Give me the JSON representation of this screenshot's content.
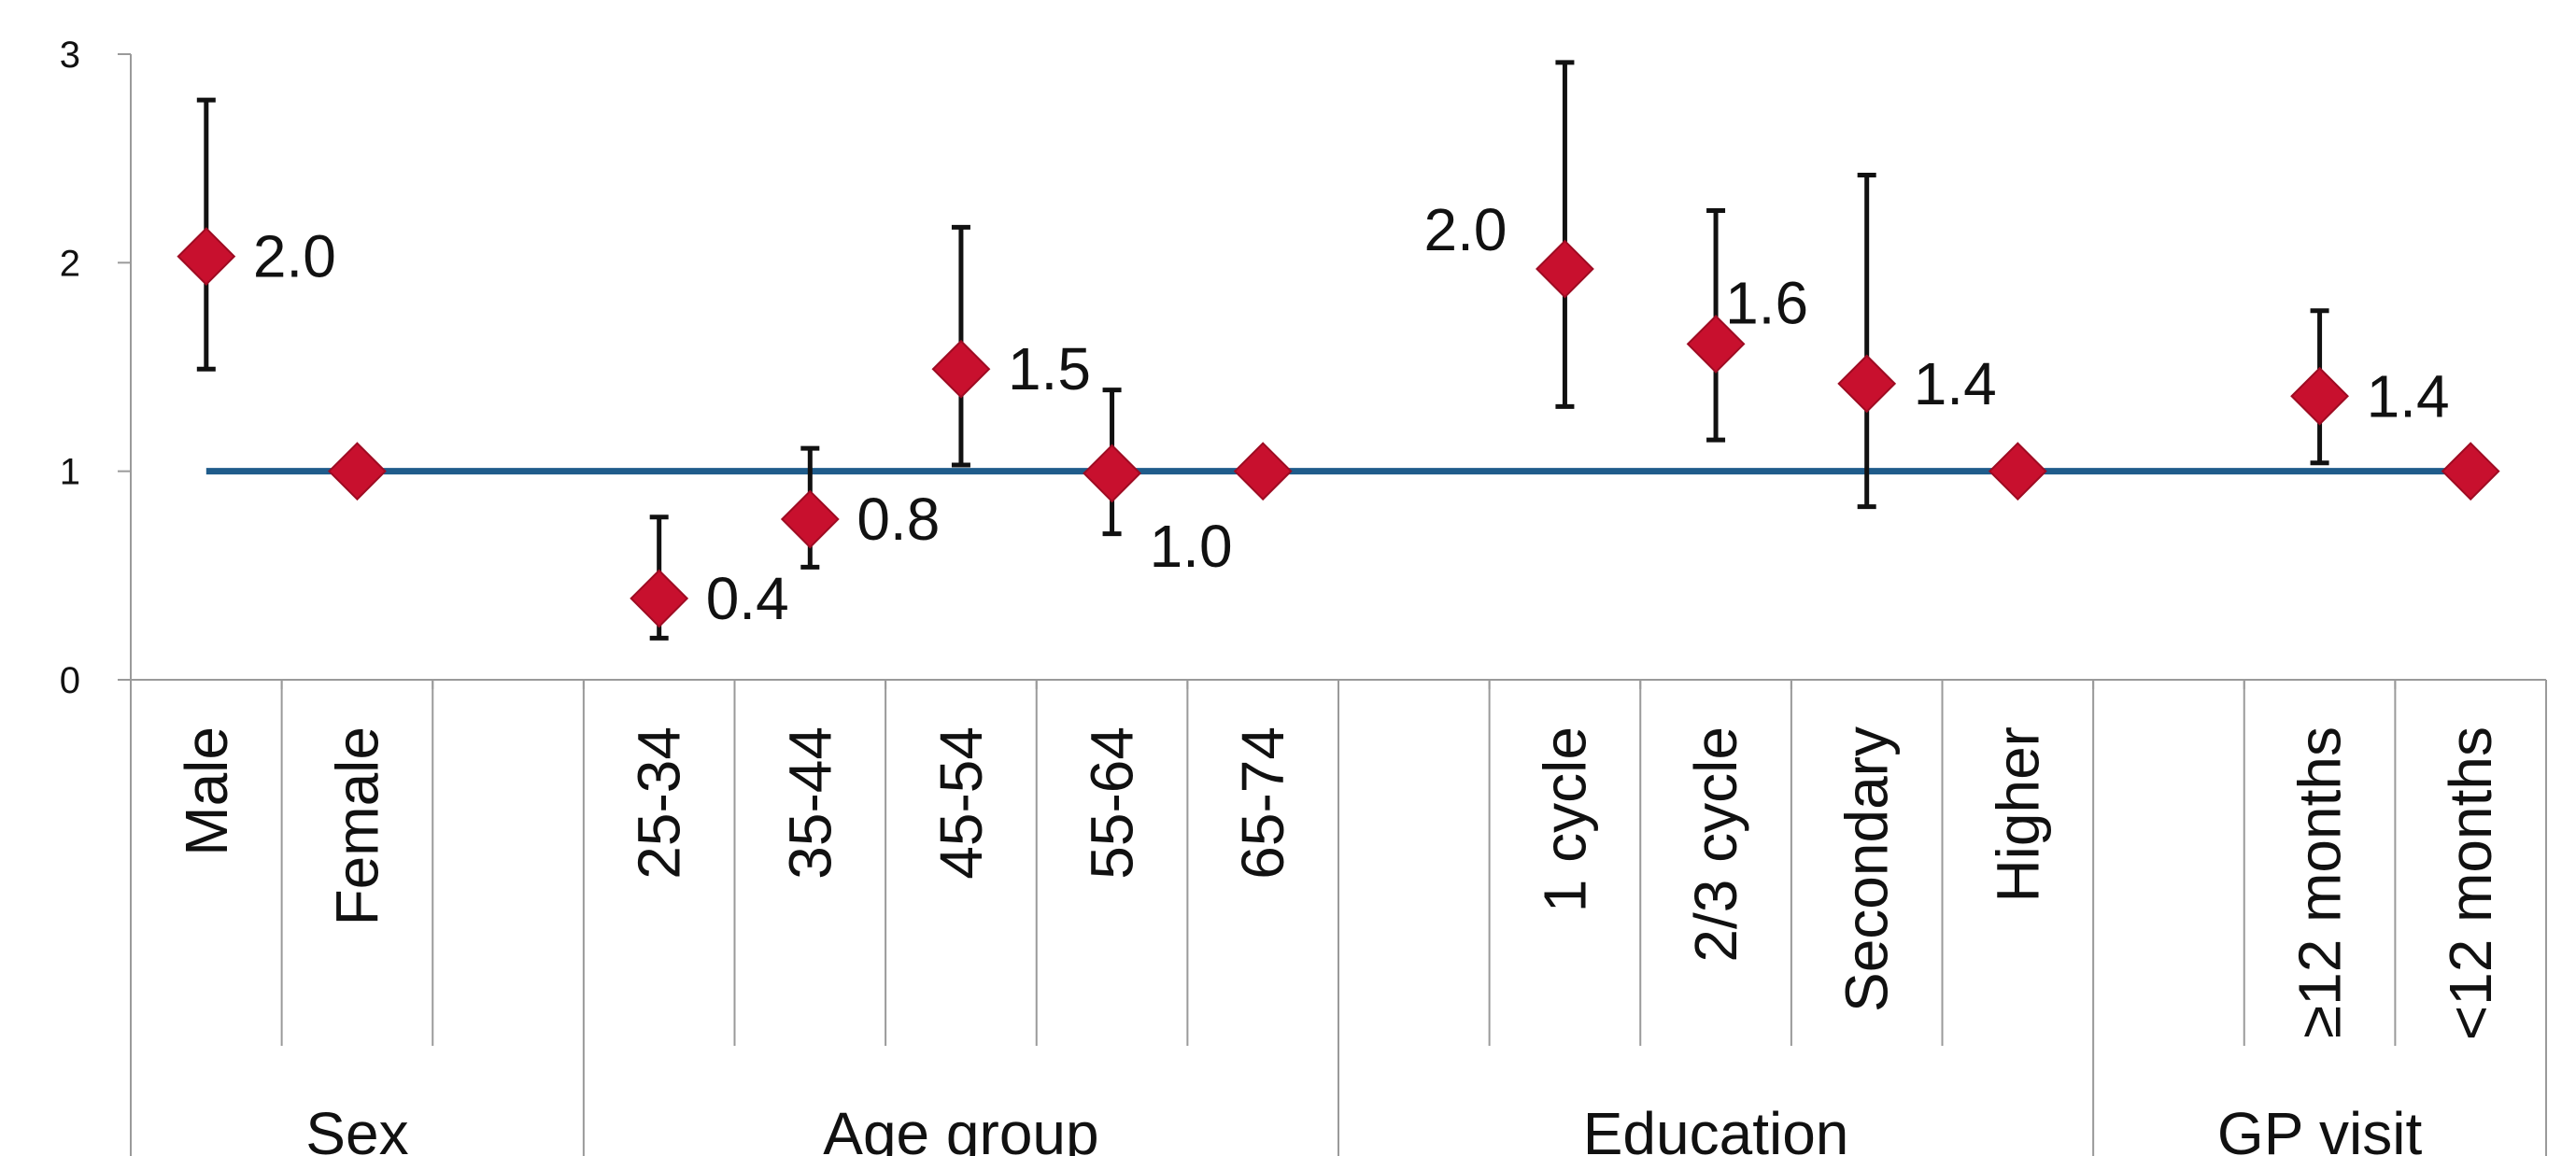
{
  "chart_data": {
    "type": "scatter",
    "title": "",
    "xlabel": "",
    "ylabel": "",
    "ylim": [
      0,
      3
    ],
    "yticks": [
      "0",
      "1",
      "2",
      "3"
    ],
    "grid": false,
    "reference_line": {
      "y": 1,
      "color": "#1f5c8b"
    },
    "marker_color": "#c8102e",
    "slots": [
      {
        "label": "Male",
        "group": "Sex"
      },
      {
        "label": "Female",
        "group": "Sex"
      },
      {
        "label": "",
        "group": "Sex"
      },
      {
        "label": "25-34",
        "group": "Age group"
      },
      {
        "label": "35-44",
        "group": "Age group"
      },
      {
        "label": "45-54",
        "group": "Age group"
      },
      {
        "label": "55-64",
        "group": "Age group"
      },
      {
        "label": "65-74",
        "group": "Age group"
      },
      {
        "label": "",
        "group": "Education"
      },
      {
        "label": "1 cycle",
        "group": "Education"
      },
      {
        "label": "2/3 cycle",
        "group": "Education"
      },
      {
        "label": "Secondary",
        "group": "Education"
      },
      {
        "label": "Higher",
        "group": "Education"
      },
      {
        "label": "",
        "group": "GP visit"
      },
      {
        "label": "≥12 months",
        "group": "GP visit"
      },
      {
        "label": "<12 months",
        "group": "GP visit"
      }
    ],
    "groups": [
      "Sex",
      "Age group",
      "Education",
      "GP visit"
    ],
    "points": [
      {
        "slot": 0,
        "value": 2.03,
        "low": 1.49,
        "high": 2.78,
        "label": "2.0",
        "label_side": "right"
      },
      {
        "slot": 1,
        "value": 1.0,
        "label": ""
      },
      {
        "slot": 3,
        "value": 0.39,
        "low": 0.2,
        "high": 0.78,
        "label": "0.4",
        "label_side": "right"
      },
      {
        "slot": 4,
        "value": 0.77,
        "low": 0.54,
        "high": 1.11,
        "label": "0.8",
        "label_side": "right"
      },
      {
        "slot": 5,
        "value": 1.49,
        "low": 1.03,
        "high": 2.17,
        "label": "1.5",
        "label_side": "right"
      },
      {
        "slot": 6,
        "value": 0.99,
        "low": 0.7,
        "high": 1.39,
        "label": "1.0",
        "label_side": "right-below"
      },
      {
        "slot": 7,
        "value": 1.0,
        "label": ""
      },
      {
        "slot": 9,
        "value": 1.97,
        "low": 1.31,
        "high": 2.96,
        "label": "2.0",
        "label_side": "left-above"
      },
      {
        "slot": 10,
        "value": 1.61,
        "low": 1.15,
        "high": 2.25,
        "label": "1.6",
        "label_side": "right-above"
      },
      {
        "slot": 11,
        "value": 1.42,
        "low": 0.83,
        "high": 2.42,
        "label": "1.4",
        "label_side": "right"
      },
      {
        "slot": 12,
        "value": 1.0,
        "label": ""
      },
      {
        "slot": 14,
        "value": 1.36,
        "low": 1.04,
        "high": 1.77,
        "label": "1.4",
        "label_side": "right"
      },
      {
        "slot": 15,
        "value": 1.0,
        "label": ""
      }
    ]
  }
}
